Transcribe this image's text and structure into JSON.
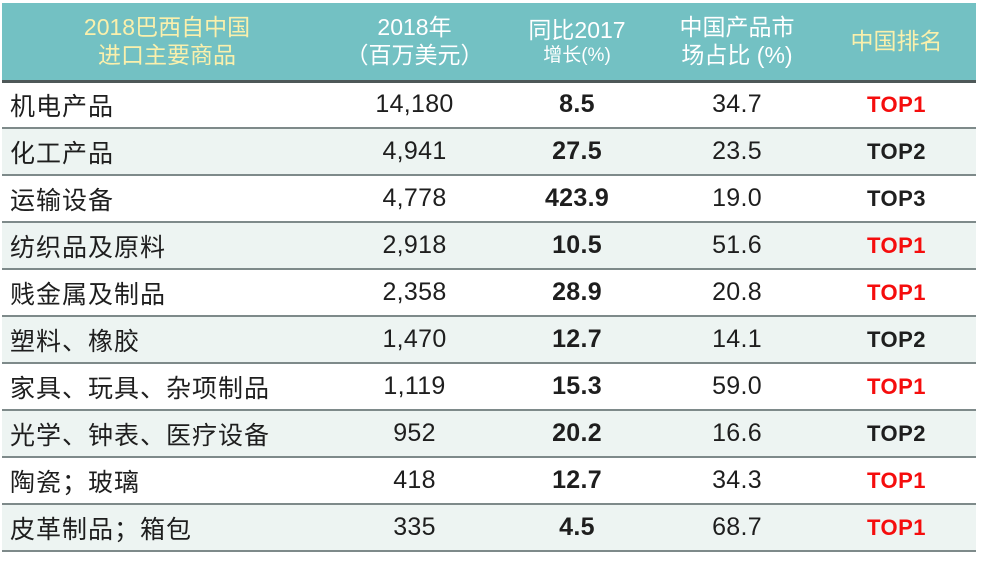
{
  "colors": {
    "header_bg": "#73C1C3",
    "header_text": "#FFFFFF",
    "header_text_accent": "#FAF0AC",
    "row_alt_bg": "#EDF4F2",
    "separator": "#7E8A8A",
    "header_separator": "#4E5858",
    "body_text": "#1E1E1E",
    "rank_top1_red": "#F50D0D"
  },
  "table": {
    "columns": [
      {
        "line1": "2018巴西自中国",
        "line2": "进口主要商品",
        "accent": true,
        "small_line2": false
      },
      {
        "line1": "2018年",
        "line2": "（百万美元）",
        "accent": false,
        "small_line2": false
      },
      {
        "line1": "同比2017",
        "line2": "增长(%)",
        "accent": false,
        "small_line2": true
      },
      {
        "line1": "中国产品市",
        "line2": "场占比 (%)",
        "accent": false,
        "small_line2": false
      },
      {
        "line1": "中国排名",
        "line2": "",
        "accent": true,
        "small_line2": false
      }
    ],
    "rows": [
      {
        "commodity": "机电产品",
        "amount": "14,180",
        "growth": "8.5",
        "share": "34.7",
        "rank": "TOP1",
        "rank_red": true
      },
      {
        "commodity": "化工产品",
        "amount": "4,941",
        "growth": "27.5",
        "share": "23.5",
        "rank": "TOP2",
        "rank_red": false
      },
      {
        "commodity": "运输设备",
        "amount": "4,778",
        "growth": "423.9",
        "share": "19.0",
        "rank": "TOP3",
        "rank_red": false
      },
      {
        "commodity": "纺织品及原料",
        "amount": "2,918",
        "growth": "10.5",
        "share": "51.6",
        "rank": "TOP1",
        "rank_red": true
      },
      {
        "commodity": "贱金属及制品",
        "amount": "2,358",
        "growth": "28.9",
        "share": "20.8",
        "rank": "TOP1",
        "rank_red": true
      },
      {
        "commodity": "塑料、橡胶",
        "amount": "1,470",
        "growth": "12.7",
        "share": "14.1",
        "rank": "TOP2",
        "rank_red": false
      },
      {
        "commodity": "家具、玩具、杂项制品",
        "amount": "1,119",
        "growth": "15.3",
        "share": "59.0",
        "rank": "TOP1",
        "rank_red": true
      },
      {
        "commodity": "光学、钟表、医疗设备",
        "amount": "952",
        "growth": "20.2",
        "share": "16.6",
        "rank": "TOP2",
        "rank_red": false
      },
      {
        "commodity": "陶瓷；玻璃",
        "amount": "418",
        "growth": "12.7",
        "share": "34.3",
        "rank": "TOP1",
        "rank_red": true
      },
      {
        "commodity": "皮革制品；箱包",
        "amount": "335",
        "growth": "4.5",
        "share": "68.7",
        "rank": "TOP1",
        "rank_red": true
      }
    ]
  },
  "chart_data": {
    "type": "table",
    "title": "2018巴西自中国进口主要商品",
    "columns": [
      "2018巴西自中国进口主要商品",
      "2018年（百万美元）",
      "同比2017增长(%)",
      "中国产品市场占比 (%)",
      "中国排名"
    ],
    "rows": [
      [
        "机电产品",
        14180,
        8.5,
        34.7,
        "TOP1"
      ],
      [
        "化工产品",
        4941,
        27.5,
        23.5,
        "TOP2"
      ],
      [
        "运输设备",
        4778,
        423.9,
        19.0,
        "TOP3"
      ],
      [
        "纺织品及原料",
        2918,
        10.5,
        51.6,
        "TOP1"
      ],
      [
        "贱金属及制品",
        2358,
        28.9,
        20.8,
        "TOP1"
      ],
      [
        "塑料、橡胶",
        1470,
        12.7,
        14.1,
        "TOP2"
      ],
      [
        "家具、玩具、杂项制品",
        1119,
        15.3,
        59.0,
        "TOP1"
      ],
      [
        "光学、钟表、医疗设备",
        952,
        20.2,
        16.6,
        "TOP2"
      ],
      [
        "陶瓷；玻璃",
        418,
        12.7,
        34.3,
        "TOP1"
      ],
      [
        "皮革制品；箱包",
        335,
        4.5,
        68.7,
        "TOP1"
      ]
    ],
    "legend": "none",
    "notes": "TOP1 ranks rendered in red bold; TOP2/TOP3 in black bold; growth column bold; alternate rows tinted light teal"
  }
}
